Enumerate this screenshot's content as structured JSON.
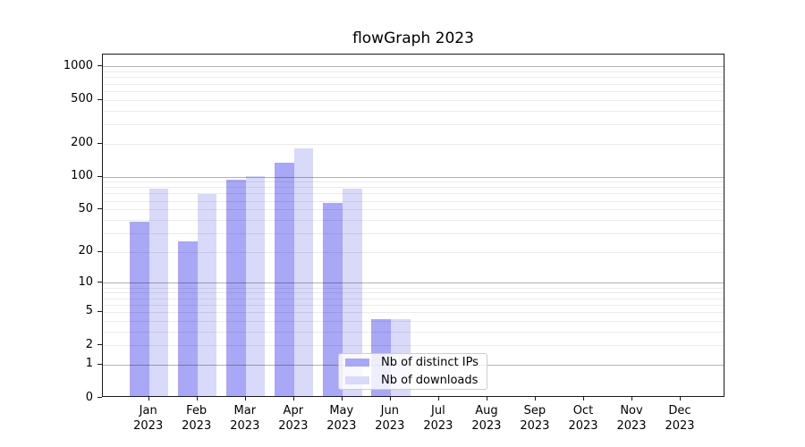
{
  "chart_data": {
    "type": "bar",
    "title": "flowGraph 2023",
    "categories": [
      "Jan 2023",
      "Feb 2023",
      "Mar 2023",
      "Apr 2023",
      "May 2023",
      "Jun 2023",
      "Jul 2023",
      "Aug 2023",
      "Sep 2023",
      "Oct 2023",
      "Nov 2023",
      "Dec 2023"
    ],
    "series": [
      {
        "name": "Nb of distinct IPs",
        "color": "#a8a8f6",
        "values": [
          37,
          24,
          90,
          130,
          55,
          4,
          0,
          0,
          0,
          0,
          0,
          0
        ]
      },
      {
        "name": "Nb of downloads",
        "color": "#d9d9f9",
        "values": [
          75,
          67,
          98,
          173,
          75,
          4,
          0,
          0,
          0,
          0,
          0,
          0
        ]
      }
    ],
    "y_axis": {
      "scale": "log1p",
      "tick_labels": [
        1000,
        500,
        200,
        100,
        50,
        20,
        10,
        5,
        2,
        1,
        0
      ],
      "major_gridlines": [
        1,
        10,
        100,
        1000
      ],
      "range": [
        0,
        1300
      ]
    },
    "x_axis": {
      "tick_label_format": "month newline year"
    },
    "legend": {
      "position": "lower-center",
      "frame": true
    },
    "grid": "on"
  }
}
